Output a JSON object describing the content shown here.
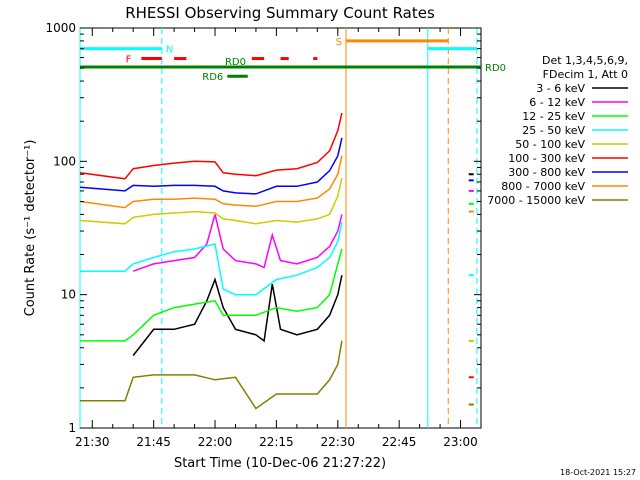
{
  "chart_data": {
    "type": "line",
    "title": "RHESSI Observing Summary Count Rates",
    "xlabel": "Start Time (10-Dec-06 21:27:22)",
    "ylabel": "Count Rate (s⁻¹ detector⁻¹)",
    "yscale": "log",
    "ylim": [
      1,
      1000
    ],
    "xlim": [
      "21:27",
      "23:05"
    ],
    "y_ticks": [
      "1",
      "10",
      "100",
      "1000"
    ],
    "x_ticks": [
      "21:30",
      "21:45",
      "22:00",
      "22:15",
      "22:30",
      "22:45",
      "23:00"
    ],
    "legend": {
      "placement": "right",
      "header": [
        "Det 1,3,4,5,6,9,",
        "FDecim 1, Att 0"
      ]
    },
    "series": [
      {
        "name": "3 - 6 keV",
        "color": "#000000",
        "x": [
          "21:40",
          "21:45",
          "21:50",
          "21:55",
          "21:58",
          "22:00",
          "22:02",
          "22:05",
          "22:10",
          "22:12",
          "22:14",
          "22:16",
          "22:20",
          "22:25",
          "22:28",
          "22:30",
          "22:31"
        ],
        "y": [
          3.5,
          5.5,
          5.5,
          6,
          9,
          13,
          8,
          5.5,
          5,
          4.5,
          12,
          5.5,
          5,
          5.5,
          7,
          10,
          14
        ]
      },
      {
        "name": "6 - 12 keV",
        "color": "#ff00ff",
        "x": [
          "21:40",
          "21:45",
          "21:50",
          "21:55",
          "21:58",
          "22:00",
          "22:02",
          "22:05",
          "22:10",
          "22:12",
          "22:14",
          "22:16",
          "22:20",
          "22:25",
          "22:28",
          "22:30",
          "22:31"
        ],
        "y": [
          15,
          17,
          18,
          19,
          24,
          40,
          22,
          18,
          17,
          16,
          28,
          18,
          17,
          19,
          23,
          30,
          40
        ]
      },
      {
        "name": "12 - 25 keV",
        "color": "#00ff00",
        "x": [
          "21:27",
          "21:38",
          "21:40",
          "21:45",
          "21:50",
          "21:55",
          "22:00",
          "22:02",
          "22:05",
          "22:10",
          "22:15",
          "22:20",
          "22:25",
          "22:28",
          "22:30",
          "22:31"
        ],
        "y": [
          4.5,
          4.5,
          5,
          7,
          8,
          8.5,
          9,
          7,
          7,
          7,
          8,
          7.5,
          8,
          10,
          17,
          22
        ]
      },
      {
        "name": "25 - 50 keV",
        "color": "#00ffff",
        "x": [
          "21:27",
          "21:38",
          "21:40",
          "21:45",
          "21:50",
          "21:55",
          "22:00",
          "22:02",
          "22:05",
          "22:10",
          "22:15",
          "22:20",
          "22:25",
          "22:28",
          "22:30",
          "22:31"
        ],
        "y": [
          15,
          15,
          17,
          19,
          21,
          22,
          24,
          11,
          10,
          10,
          13,
          14,
          16,
          19,
          25,
          35
        ]
      },
      {
        "name": "50 - 100 keV",
        "color": "#cccc00",
        "x": [
          "21:27",
          "21:38",
          "21:40",
          "21:45",
          "21:50",
          "21:55",
          "22:00",
          "22:02",
          "22:05",
          "22:10",
          "22:15",
          "22:20",
          "22:25",
          "22:28",
          "22:30",
          "22:31"
        ],
        "y": [
          36,
          34,
          38,
          40,
          41,
          42,
          41,
          37,
          36,
          34,
          36,
          35,
          37,
          40,
          55,
          75
        ]
      },
      {
        "name": "100 - 300 keV",
        "color": "#ff0000",
        "x": [
          "21:27",
          "21:38",
          "21:40",
          "21:45",
          "21:50",
          "21:55",
          "22:00",
          "22:02",
          "22:05",
          "22:10",
          "22:15",
          "22:20",
          "22:25",
          "22:28",
          "22:30",
          "22:31"
        ],
        "y": [
          82,
          74,
          88,
          93,
          97,
          100,
          99,
          82,
          80,
          78,
          86,
          88,
          98,
          120,
          170,
          230
        ]
      },
      {
        "name": "300 - 800 keV",
        "color": "#0000ff",
        "x": [
          "21:27",
          "21:38",
          "21:40",
          "21:45",
          "21:50",
          "21:55",
          "22:00",
          "22:02",
          "22:05",
          "22:10",
          "22:15",
          "22:20",
          "22:25",
          "22:28",
          "22:30",
          "22:31"
        ],
        "y": [
          64,
          60,
          66,
          65,
          66,
          66,
          65,
          60,
          58,
          57,
          65,
          65,
          70,
          85,
          110,
          150
        ]
      },
      {
        "name": "800 - 7000 keV",
        "color": "#ff8800",
        "x": [
          "21:27",
          "21:38",
          "21:40",
          "21:45",
          "21:50",
          "21:55",
          "22:00",
          "22:02",
          "22:05",
          "22:10",
          "22:15",
          "22:20",
          "22:25",
          "22:28",
          "22:30",
          "22:31"
        ],
        "y": [
          50,
          45,
          50,
          52,
          52,
          53,
          52,
          48,
          47,
          46,
          50,
          50,
          53,
          62,
          80,
          110
        ]
      },
      {
        "name": "7000 - 15000 keV",
        "color": "#808000",
        "x": [
          "21:27",
          "21:38",
          "21:40",
          "21:45",
          "21:50",
          "21:55",
          "22:00",
          "22:05",
          "22:10",
          "22:15",
          "22:20",
          "22:25",
          "22:28",
          "22:30",
          "22:31"
        ],
        "y": [
          1.6,
          1.6,
          2.4,
          2.5,
          2.5,
          2.5,
          2.3,
          2.4,
          1.4,
          1.8,
          1.8,
          1.8,
          2.3,
          3,
          4.5
        ]
      }
    ],
    "late_segment": {
      "x": "23:02",
      "values": [
        80,
        60,
        48,
        14,
        4.5,
        2.4,
        72,
        42,
        1.5
      ]
    },
    "annotations": {
      "night_bars": [
        {
          "label": "N",
          "start": "21:27",
          "end": "21:47",
          "color": "#00ffff",
          "y": 700
        },
        {
          "label": "",
          "start": "22:52",
          "end": "23:04",
          "color": "#00ffff",
          "y": 700
        }
      ],
      "saa_bar": {
        "label": "S",
        "start": "22:32",
        "end": "22:57",
        "color": "#ff8800",
        "y": 800
      },
      "flare_bar": {
        "label": "F",
        "color": "#ff0000",
        "y": 590,
        "segments": [
          [
            "21:42",
            "21:47"
          ],
          [
            "21:50",
            "21:53"
          ],
          [
            "22:09",
            "22:12"
          ],
          [
            "22:16",
            "22:18"
          ],
          [
            "22:24",
            "22:25"
          ]
        ]
      },
      "rd0_bar": {
        "label": "RD0",
        "start": "21:27",
        "end": "23:05",
        "color": "#008000",
        "y": 510
      },
      "rd6_bar": {
        "label": "RD6",
        "start": "22:03",
        "end": "22:08",
        "color": "#008000",
        "y": 435
      },
      "vlines": [
        {
          "time": "21:27",
          "color": "#00ffff",
          "style": "solid"
        },
        {
          "time": "21:47",
          "color": "#00ffff",
          "style": "dashed"
        },
        {
          "time": "22:32",
          "color": "#ff8800",
          "style": "solid"
        },
        {
          "time": "22:52",
          "color": "#00ffff",
          "style": "solid"
        },
        {
          "time": "22:57",
          "color": "#ff8800",
          "style": "dashed"
        },
        {
          "time": "23:04",
          "color": "#00ffff",
          "style": "dashed"
        }
      ]
    },
    "footer_date": "18-Oct-2021 15:27"
  }
}
